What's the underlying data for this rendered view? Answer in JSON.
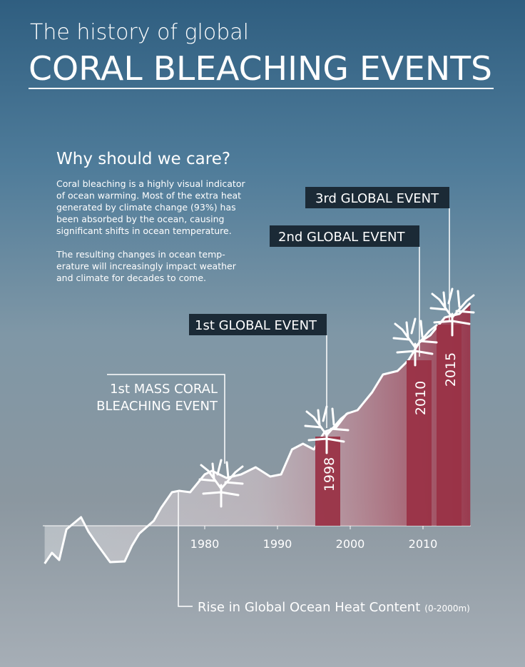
{
  "header": {
    "title_line1": "The history of global",
    "title_line2": "CORAL BLEACHING EVENTS"
  },
  "intro": {
    "heading": "Why should we care?",
    "paragraph1": [
      "Coral bleaching is a highly visual indicator",
      "of ocean warming. Most of the extra heat",
      "generated by climate change (93%) has",
      "been absorbed by the ocean, causing",
      "significant shifts in ocean temperature."
    ],
    "paragraph2": [
      "The resulting changes in ocean temp-",
      "erature will increasingly impact weather",
      "and climate for decades to come."
    ]
  },
  "events": {
    "third": "3rd GLOBAL EVENT",
    "second": "2nd GLOBAL EVENT",
    "first": "1st GLOBAL EVENT",
    "mass": [
      "1st MASS CORAL",
      "BLEACHING EVENT"
    ],
    "bar_labels": [
      "1998",
      "2010",
      "2015"
    ]
  },
  "chart_data": {
    "type": "line",
    "x_label": "Rise in Global Ocean Heat Content",
    "x_label_note": "(0-2000m)",
    "x": [
      1958,
      1959,
      1960,
      1961,
      1963,
      1964,
      1965,
      1967,
      1969,
      1970,
      1971,
      1973,
      1974,
      1975.5,
      1976.5,
      1978,
      1980,
      1981,
      1983,
      1985,
      1987,
      1989,
      1990.5,
      1992,
      1993.5,
      1995,
      1996.5,
      1998,
      1999.5,
      2001,
      2003,
      2004.5,
      2006.5,
      2008,
      2009.5,
      2011,
      2013,
      2015,
      2016.5
    ],
    "series": [
      {
        "color": "#ffffff",
        "values": [
          -5.3,
          -3.8,
          -4.8,
          -0.5,
          1.2,
          -0.8,
          -2.3,
          -5.1,
          -5,
          -2.8,
          -1.1,
          0.7,
          2.5,
          4.7,
          4.9,
          4.7,
          7.2,
          7.7,
          6.7,
          7.2,
          8.2,
          6.9,
          7.2,
          10.7,
          11.5,
          10.7,
          13.2,
          13.7,
          15.7,
          16.2,
          18.7,
          21.2,
          21.7,
          23.2,
          25.7,
          26.7,
          29.2,
          29.7,
          31.2
        ]
      }
    ],
    "xlim": [
      1957,
      2017
    ],
    "xticks": [
      1980,
      1990,
      2000,
      2010
    ],
    "ylim": [
      -8,
      40
    ]
  }
}
